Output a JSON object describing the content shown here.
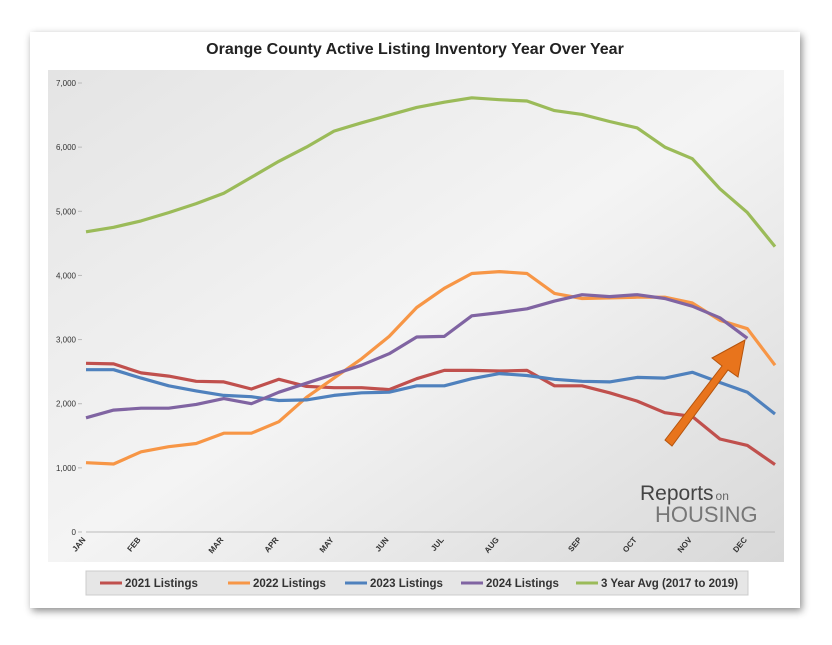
{
  "chart_data": {
    "type": "line",
    "title": "Orange County Active Listing Inventory Year Over Year",
    "categories": [
      "JAN",
      null,
      "FEB",
      null,
      null,
      "MAR",
      null,
      "APR",
      null,
      "MAY",
      null,
      "JUN",
      null,
      "JUL",
      null,
      "AUG",
      null,
      null,
      "SEP",
      null,
      "OCT",
      null,
      "NOV",
      null,
      "DEC",
      null
    ],
    "series": [
      {
        "name": "2021 Listings",
        "color": "#c0504d",
        "values": [
          2630,
          2620,
          2480,
          2430,
          2350,
          2340,
          2230,
          2380,
          2270,
          2250,
          2250,
          2220,
          2390,
          2520,
          2520,
          2510,
          2520,
          2280,
          2280,
          2170,
          2040,
          1860,
          1800,
          1450,
          1350,
          1050
        ]
      },
      {
        "name": "2022 Listings",
        "color": "#f79646",
        "values": [
          1080,
          1060,
          1250,
          1330,
          1380,
          1540,
          1540,
          1720,
          2100,
          2400,
          2700,
          3050,
          3500,
          3800,
          4030,
          4060,
          4030,
          3720,
          3640,
          3650,
          3660,
          3660,
          3570,
          3300,
          3170,
          2600
        ]
      },
      {
        "name": "2023 Listings",
        "color": "#4f81bd",
        "values": [
          2530,
          2530,
          2400,
          2280,
          2200,
          2130,
          2110,
          2050,
          2060,
          2130,
          2170,
          2180,
          2280,
          2280,
          2390,
          2470,
          2440,
          2380,
          2350,
          2340,
          2410,
          2400,
          2490,
          2330,
          2180,
          1840
        ]
      },
      {
        "name": "2024 Listings",
        "color": "#8064a2",
        "values": [
          1780,
          1900,
          1930,
          1930,
          1990,
          2080,
          2000,
          2180,
          2320,
          2460,
          2600,
          2780,
          3040,
          3050,
          3370,
          3420,
          3480,
          3600,
          3700,
          3670,
          3700,
          3640,
          3520,
          3340,
          3020,
          null
        ]
      },
      {
        "name": "3 Year Avg (2017 to 2019)",
        "color": "#9bbb59",
        "values": [
          4680,
          4750,
          4850,
          4980,
          5120,
          5280,
          5530,
          5780,
          6000,
          6250,
          6380,
          6500,
          6620,
          6700,
          6770,
          6740,
          6720,
          6570,
          6510,
          6400,
          6300,
          6000,
          5820,
          5350,
          4980,
          4450
        ]
      }
    ],
    "ylim": [
      0,
      7000
    ],
    "yticks": [
      0,
      {
        "value": 1000,
        "label": "1,000"
      },
      {
        "value": 2000,
        "label": "2,000"
      },
      {
        "value": 3000,
        "label": "3,000"
      },
      {
        "value": 4000,
        "label": "4,000"
      },
      {
        "value": 5000,
        "label": "5,000"
      },
      {
        "value": 6000,
        "label": "6,000"
      },
      {
        "value": 7000,
        "label": "7,000"
      }
    ],
    "grid": false,
    "legend": "bottom",
    "logo": {
      "top": "Reports",
      "small": "on",
      "bottom": "HOUSING"
    }
  }
}
